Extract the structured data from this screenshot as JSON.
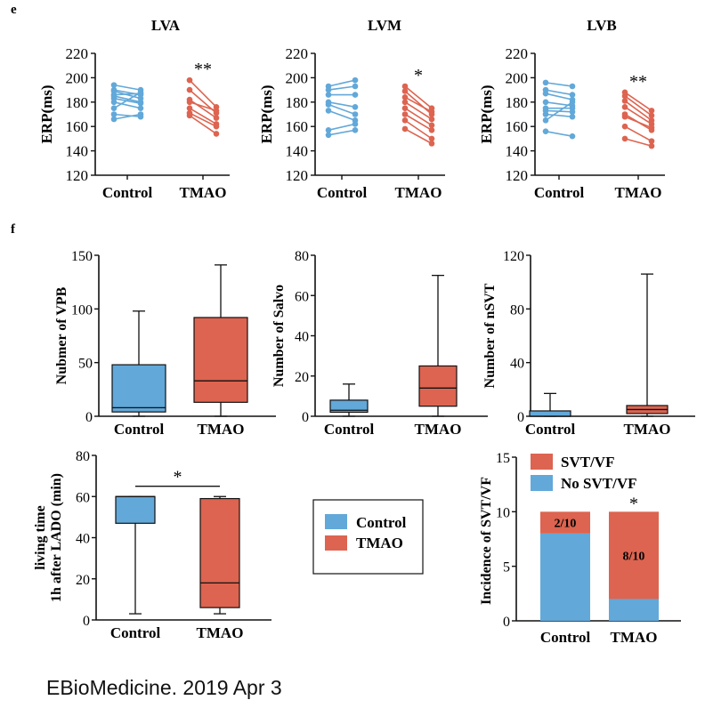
{
  "colors": {
    "control": "#62a8d9",
    "tmao": "#dd6450",
    "axis": "#111111"
  },
  "panel_e": {
    "label": "e",
    "y_ticks": [
      "220",
      "200",
      "180",
      "160",
      "140",
      "120"
    ],
    "y_label": "ERP(ms)",
    "x_labels": [
      "Control",
      "TMAO"
    ]
  },
  "panel_f": {
    "label": "f"
  },
  "legend": {
    "control": "Control",
    "tmao": "TMAO"
  },
  "citation": "EBioMedicine. 2019 Apr 3",
  "chart_data": [
    {
      "id": "LVA",
      "type": "scatter",
      "title": "LVA",
      "ylabel": "ERP(ms)",
      "ylim": [
        120,
        220
      ],
      "categories": [
        "Control",
        "TMAO"
      ],
      "significance": "**",
      "series": [
        {
          "name": "Control",
          "pairs": [
            [
              194,
              190
            ],
            [
              190,
              186
            ],
            [
              189,
              183
            ],
            [
              186,
              187
            ],
            [
              185,
              180
            ],
            [
              183,
              179
            ],
            [
              180,
              175
            ],
            [
              175,
              188
            ],
            [
              170,
              168
            ],
            [
              166,
              170
            ]
          ]
        },
        {
          "name": "TMAO",
          "pairs": [
            [
              198,
              176
            ],
            [
              190,
              171
            ],
            [
              182,
              167
            ],
            [
              180,
              173
            ],
            [
              175,
              162
            ],
            [
              171,
              160
            ],
            [
              169,
              154
            ]
          ]
        }
      ]
    },
    {
      "id": "LVM",
      "type": "scatter",
      "title": "LVM",
      "ylabel": "ERP(ms)",
      "ylim": [
        120,
        220
      ],
      "categories": [
        "Control",
        "TMAO"
      ],
      "significance": "*",
      "series": [
        {
          "name": "Control",
          "pairs": [
            [
              193,
              198
            ],
            [
              190,
              193
            ],
            [
              186,
              186
            ],
            [
              180,
              176
            ],
            [
              178,
              170
            ],
            [
              173,
              165
            ],
            [
              157,
              162
            ],
            [
              153,
              157
            ]
          ]
        },
        {
          "name": "TMAO",
          "pairs": [
            [
              193,
              175
            ],
            [
              189,
              170
            ],
            [
              184,
              172
            ],
            [
              180,
              166
            ],
            [
              175,
              161
            ],
            [
              170,
              157
            ],
            [
              165,
              150
            ],
            [
              158,
              146
            ]
          ]
        }
      ]
    },
    {
      "id": "LVB",
      "type": "scatter",
      "title": "LVB",
      "ylabel": "ERP(ms)",
      "ylim": [
        120,
        220
      ],
      "categories": [
        "Control",
        "TMAO"
      ],
      "significance": "**",
      "series": [
        {
          "name": "Control",
          "pairs": [
            [
              196,
              193
            ],
            [
              190,
              186
            ],
            [
              187,
              182
            ],
            [
              180,
              177
            ],
            [
              175,
              175
            ],
            [
              173,
              172
            ],
            [
              170,
              168
            ],
            [
              165,
              180
            ],
            [
              156,
              152
            ]
          ]
        },
        {
          "name": "TMAO",
          "pairs": [
            [
              188,
              173
            ],
            [
              185,
              169
            ],
            [
              181,
              165
            ],
            [
              176,
              162
            ],
            [
              170,
              157
            ],
            [
              168,
              159
            ],
            [
              160,
              148
            ],
            [
              150,
              144
            ]
          ]
        }
      ]
    },
    {
      "id": "VPB",
      "type": "box",
      "ylabel": "Nubmer of VPB",
      "ylim": [
        0,
        150
      ],
      "yticks": [
        0,
        50,
        100,
        150
      ],
      "categories": [
        "Control",
        "TMAO"
      ],
      "series": [
        {
          "name": "Control",
          "min": 0,
          "q1": 4,
          "median": 8,
          "q3": 48,
          "max": 98
        },
        {
          "name": "TMAO",
          "min": 0,
          "q1": 13,
          "median": 33,
          "q3": 92,
          "max": 141
        }
      ]
    },
    {
      "id": "Salvo",
      "type": "box",
      "ylabel": "Number of Salvo",
      "ylim": [
        0,
        80
      ],
      "yticks": [
        0,
        20,
        40,
        60,
        80
      ],
      "categories": [
        "Control",
        "TMAO"
      ],
      "series": [
        {
          "name": "Control",
          "min": 0,
          "q1": 2,
          "median": 3,
          "q3": 8,
          "max": 16
        },
        {
          "name": "TMAO",
          "min": 0,
          "q1": 5,
          "median": 14,
          "q3": 25,
          "max": 70
        }
      ]
    },
    {
      "id": "nSVT",
      "type": "box",
      "ylabel": "Number of nSVT",
      "ylim": [
        0,
        120
      ],
      "yticks": [
        0,
        40,
        80,
        120
      ],
      "categories": [
        "Control",
        "TMAO"
      ],
      "series": [
        {
          "name": "Control",
          "min": 0,
          "q1": 0,
          "median": 0,
          "q3": 4,
          "max": 17
        },
        {
          "name": "TMAO",
          "min": 0,
          "q1": 2,
          "median": 5,
          "q3": 8,
          "max": 106
        }
      ]
    },
    {
      "id": "LivingTime",
      "type": "box",
      "ylabel": [
        "living time",
        "1h after LADO (min)"
      ],
      "ylim": [
        0,
        80
      ],
      "yticks": [
        0,
        20,
        40,
        60,
        80
      ],
      "categories": [
        "Control",
        "TMAO"
      ],
      "significance": "*",
      "series": [
        {
          "name": "Control",
          "min": 3,
          "q1": 47,
          "median": 60,
          "q3": 60,
          "max": 60
        },
        {
          "name": "TMAO",
          "min": 3,
          "q1": 6,
          "median": 18,
          "q3": 59,
          "max": 60
        }
      ]
    },
    {
      "id": "Incidence",
      "type": "bar",
      "stacked": true,
      "ylabel": "Incidence of SVT/VF",
      "ylim": [
        0,
        15
      ],
      "yticks": [
        0,
        5,
        10,
        15
      ],
      "categories": [
        "Control",
        "TMAO"
      ],
      "significance": "*",
      "legend": [
        "SVT/VF",
        "No SVT/VF"
      ],
      "series": [
        {
          "name": "No SVT/VF",
          "values": [
            8,
            2
          ]
        },
        {
          "name": "SVT/VF",
          "values": [
            2,
            8
          ]
        }
      ],
      "annotations": [
        "2/10",
        "8/10"
      ]
    }
  ]
}
